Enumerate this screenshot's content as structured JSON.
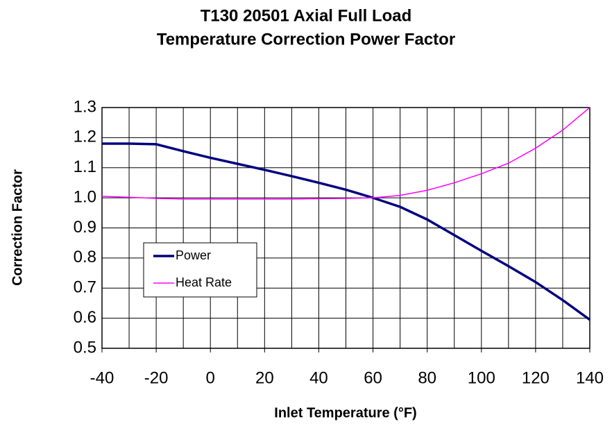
{
  "chart_data": {
    "type": "line",
    "title": "T130 20501 Axial Full Load",
    "subtitle": "Temperature Correction Power Factor",
    "x_label": "Inlet Temperature (°F)",
    "y_label": "Correction Factor",
    "x": [
      -40,
      -30,
      -20,
      -10,
      0,
      10,
      20,
      30,
      40,
      50,
      60,
      70,
      80,
      90,
      100,
      110,
      120,
      130,
      140
    ],
    "series": [
      {
        "name": "Power",
        "color": "#000080",
        "values": [
          1.18,
          1.18,
          1.178,
          1.155,
          1.133,
          1.113,
          1.093,
          1.072,
          1.05,
          1.027,
          1.0,
          0.97,
          0.928,
          0.876,
          0.824,
          0.773,
          0.72,
          0.66,
          0.595
        ]
      },
      {
        "name": "Heat Rate",
        "color": "#ff00ff",
        "values": [
          1.005,
          1.002,
          0.998,
          0.996,
          0.996,
          0.996,
          0.996,
          0.996,
          0.997,
          0.998,
          1.0,
          1.008,
          1.025,
          1.05,
          1.08,
          1.115,
          1.165,
          1.225,
          1.3
        ]
      }
    ],
    "xlim": [
      -40,
      140
    ],
    "xticks": [
      -40,
      -20,
      0,
      20,
      40,
      60,
      80,
      100,
      120,
      140
    ],
    "xgrid": [
      -40,
      -30,
      -20,
      -10,
      0,
      10,
      20,
      30,
      40,
      50,
      60,
      70,
      80,
      90,
      100,
      110,
      120,
      130,
      140
    ],
    "ylim": [
      0.5,
      1.3
    ],
    "yticks": [
      1.3,
      1.2,
      1.1,
      {
        "value": 1,
        "label": "1.0"
      },
      0.9,
      0.8,
      0.7,
      0.6,
      0.5
    ],
    "grid": true,
    "legend": "lower left"
  }
}
